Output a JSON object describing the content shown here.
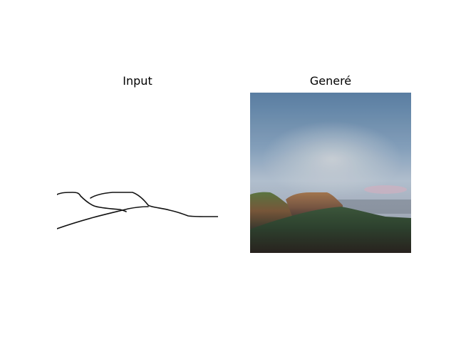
{
  "figure": {
    "input_title": "Input",
    "generated_title": "Generé"
  }
}
